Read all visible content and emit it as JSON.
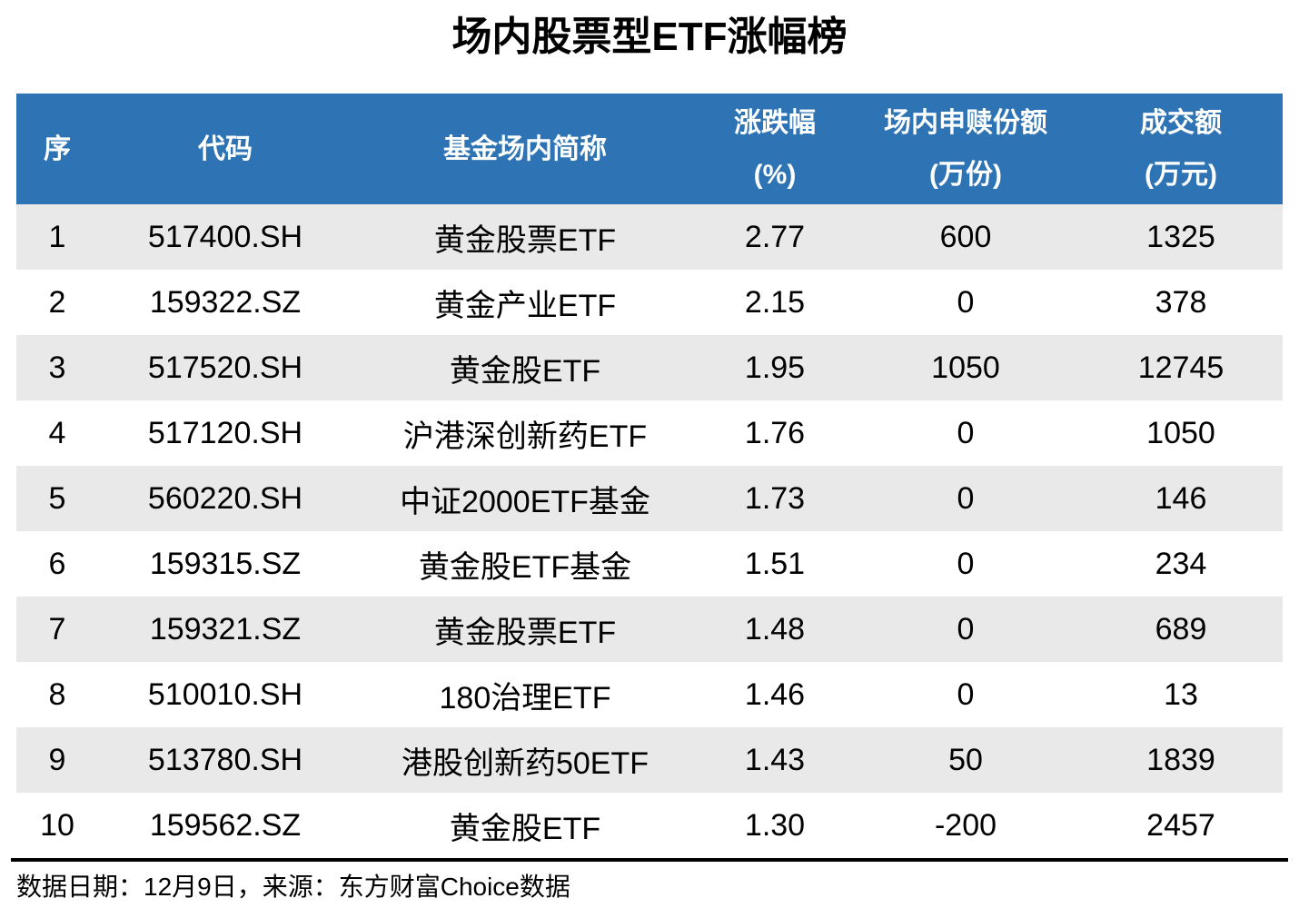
{
  "title": "场内股票型ETF涨幅榜",
  "table": {
    "headers": [
      {
        "label": "序",
        "unit": ""
      },
      {
        "label": "代码",
        "unit": ""
      },
      {
        "label": "基金场内简称",
        "unit": ""
      },
      {
        "label": "涨跌幅",
        "unit": "(%)"
      },
      {
        "label": "场内申赎份额",
        "unit": "(万份)"
      },
      {
        "label": "成交额",
        "unit": "(万元)"
      }
    ],
    "rows": [
      {
        "seq": "1",
        "code": "517400.SH",
        "name": "黄金股票ETF",
        "change": "2.77",
        "shares": "600",
        "turnover": "1325"
      },
      {
        "seq": "2",
        "code": "159322.SZ",
        "name": "黄金产业ETF",
        "change": "2.15",
        "shares": "0",
        "turnover": "378"
      },
      {
        "seq": "3",
        "code": "517520.SH",
        "name": "黄金股ETF",
        "change": "1.95",
        "shares": "1050",
        "turnover": "12745"
      },
      {
        "seq": "4",
        "code": "517120.SH",
        "name": "沪港深创新药ETF",
        "change": "1.76",
        "shares": "0",
        "turnover": "1050"
      },
      {
        "seq": "5",
        "code": "560220.SH",
        "name": "中证2000ETF基金",
        "change": "1.73",
        "shares": "0",
        "turnover": "146"
      },
      {
        "seq": "6",
        "code": "159315.SZ",
        "name": "黄金股ETF基金",
        "change": "1.51",
        "shares": "0",
        "turnover": "234"
      },
      {
        "seq": "7",
        "code": "159321.SZ",
        "name": "黄金股票ETF",
        "change": "1.48",
        "shares": "0",
        "turnover": "689"
      },
      {
        "seq": "8",
        "code": "510010.SH",
        "name": "180治理ETF",
        "change": "1.46",
        "shares": "0",
        "turnover": "13"
      },
      {
        "seq": "9",
        "code": "513780.SH",
        "name": "港股创新药50ETF",
        "change": "1.43",
        "shares": "50",
        "turnover": "1839"
      },
      {
        "seq": "10",
        "code": "159562.SZ",
        "name": "黄金股ETF",
        "change": "1.30",
        "shares": "-200",
        "turnover": "2457"
      }
    ]
  },
  "footer": {
    "text": "数据日期：12月9日，来源：东方财富Choice数据"
  },
  "colors": {
    "header_bg": "#2E74B5",
    "header_text": "#FFFFFF",
    "row_alt_bg": "#E9E9E9",
    "row_text": "#000000",
    "footer_rule": "#000000"
  },
  "chart_data": {
    "type": "table",
    "title": "场内股票型ETF涨幅榜",
    "columns": [
      "序",
      "代码",
      "基金场内简称",
      "涨跌幅(%)",
      "场内申赎份额(万份)",
      "成交额(万元)"
    ],
    "rows": [
      [
        1,
        "517400.SH",
        "黄金股票ETF",
        2.77,
        600,
        1325
      ],
      [
        2,
        "159322.SZ",
        "黄金产业ETF",
        2.15,
        0,
        378
      ],
      [
        3,
        "517520.SH",
        "黄金股ETF",
        1.95,
        1050,
        12745
      ],
      [
        4,
        "517120.SH",
        "沪港深创新药ETF",
        1.76,
        0,
        1050
      ],
      [
        5,
        "560220.SH",
        "中证2000ETF基金",
        1.73,
        0,
        146
      ],
      [
        6,
        "159315.SZ",
        "黄金股ETF基金",
        1.51,
        0,
        234
      ],
      [
        7,
        "159321.SZ",
        "黄金股票ETF",
        1.48,
        0,
        689
      ],
      [
        8,
        "510010.SH",
        "180治理ETF",
        1.46,
        0,
        13
      ],
      [
        9,
        "513780.SH",
        "港股创新药50ETF",
        1.43,
        50,
        1839
      ],
      [
        10,
        "159562.SZ",
        "黄金股ETF",
        1.3,
        -200,
        2457
      ]
    ],
    "source_note": "数据日期：12月9日，来源：东方财富Choice数据",
    "layout": {
      "header_style": "blue-banded",
      "row_striping": "odd-gray",
      "alignment": "center"
    }
  }
}
